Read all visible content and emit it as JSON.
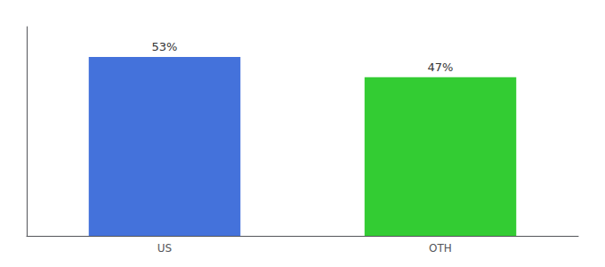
{
  "chart_data": {
    "type": "bar",
    "categories": [
      "US",
      "OTH"
    ],
    "values": [
      53,
      47
    ],
    "value_labels": [
      "53%",
      "47%"
    ],
    "colors": [
      "#4472db",
      "#33cc33"
    ],
    "ylim": [
      0,
      62
    ],
    "data_labels": true,
    "tick_labels": "x",
    "grid": false
  }
}
